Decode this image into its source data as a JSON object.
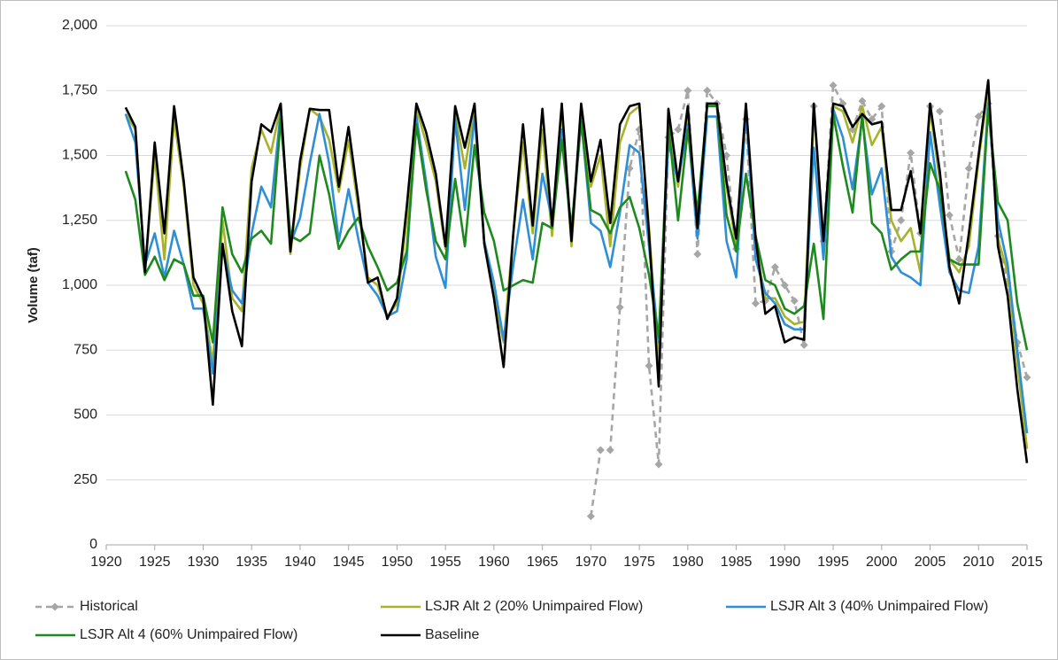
{
  "chart_data": {
    "type": "line",
    "y_label": "Volume (taf)",
    "x": [
      1922,
      1923,
      1924,
      1925,
      1926,
      1927,
      1928,
      1929,
      1930,
      1931,
      1932,
      1933,
      1934,
      1935,
      1936,
      1937,
      1938,
      1939,
      1940,
      1941,
      1942,
      1943,
      1944,
      1945,
      1946,
      1947,
      1948,
      1949,
      1950,
      1951,
      1952,
      1953,
      1954,
      1955,
      1956,
      1957,
      1958,
      1959,
      1960,
      1961,
      1962,
      1963,
      1964,
      1965,
      1966,
      1967,
      1968,
      1969,
      1970,
      1971,
      1972,
      1973,
      1974,
      1975,
      1976,
      1977,
      1978,
      1979,
      1980,
      1981,
      1982,
      1983,
      1984,
      1985,
      1986,
      1987,
      1988,
      1989,
      1990,
      1991,
      1992,
      1993,
      1994,
      1995,
      1996,
      1997,
      1998,
      1999,
      2000,
      2001,
      2002,
      2003,
      2004,
      2005,
      2006,
      2007,
      2008,
      2009,
      2010,
      2011,
      2012,
      2013,
      2014,
      2015
    ],
    "xlim": [
      1920,
      2015
    ],
    "xticks": [
      1920,
      1925,
      1930,
      1935,
      1940,
      1945,
      1950,
      1955,
      1960,
      1965,
      1970,
      1975,
      1980,
      1985,
      1990,
      1995,
      2000,
      2005,
      2010,
      2015
    ],
    "ylim": [
      0,
      2000
    ],
    "yticks": [
      0,
      250,
      500,
      750,
      {
        "value": 1000,
        "label": "1,000"
      },
      {
        "value": 1250,
        "label": "1,250"
      },
      {
        "value": 1500,
        "label": "1,500"
      },
      {
        "value": 1750,
        "label": "1,750"
      },
      {
        "value": 2000,
        "label": "2,000"
      }
    ],
    "grid": true,
    "legend": "bottom",
    "series": [
      {
        "name": "Historical",
        "color": "#a6a6a6",
        "dashed": true,
        "markers": true,
        "values": [
          null,
          null,
          null,
          null,
          null,
          null,
          null,
          null,
          null,
          null,
          null,
          null,
          null,
          null,
          null,
          null,
          null,
          null,
          null,
          null,
          null,
          null,
          null,
          null,
          null,
          null,
          null,
          null,
          null,
          null,
          null,
          null,
          null,
          null,
          null,
          null,
          null,
          null,
          null,
          null,
          null,
          null,
          null,
          null,
          null,
          null,
          null,
          null,
          110,
          365,
          365,
          915,
          1450,
          1600,
          690,
          310,
          1570,
          1600,
          1750,
          1120,
          1750,
          1700,
          1500,
          1140,
          1640,
          930,
          940,
          1070,
          1000,
          940,
          770,
          1690,
          1170,
          1770,
          1700,
          1600,
          1710,
          1640,
          1690,
          1130,
          1250,
          1510,
          1200,
          1690,
          1670,
          1270,
          1100,
          1450,
          1650,
          1700,
          1190,
          1010,
          780,
          645
        ]
      },
      {
        "name": "LSJR Alt 2 (20% Unimpaired Flow)",
        "color": "#a8b32c",
        "values": [
          1660,
          1600,
          1060,
          1500,
          1100,
          1640,
          1380,
          1000,
          930,
          700,
          1250,
          950,
          900,
          1450,
          1600,
          1510,
          1690,
          1120,
          1450,
          1680,
          1650,
          1560,
          1360,
          1560,
          1300,
          1030,
          1000,
          880,
          930,
          1250,
          1680,
          1550,
          1400,
          1140,
          1660,
          1450,
          1680,
          1170,
          960,
          780,
          1200,
          1550,
          1200,
          1600,
          1190,
          1680,
          1150,
          1680,
          1380,
          1500,
          1150,
          1550,
          1660,
          1690,
          1220,
          700,
          1650,
          1380,
          1660,
          1200,
          1690,
          1690,
          1380,
          1150,
          1690,
          1150,
          950,
          950,
          880,
          850,
          860,
          1680,
          1150,
          1690,
          1670,
          1550,
          1690,
          1540,
          1610,
          1250,
          1170,
          1220,
          1050,
          1680,
          1400,
          1100,
          1050,
          1150,
          1480,
          1760,
          1180,
          1050,
          700,
          370
        ]
      },
      {
        "name": "LSJR Alt 3 (40% Unimpaired Flow)",
        "color": "#2e8fd6",
        "values": [
          1660,
          1550,
          1080,
          1200,
          1030,
          1210,
          1080,
          910,
          910,
          660,
          1150,
          980,
          930,
          1200,
          1380,
          1300,
          1670,
          1160,
          1260,
          1470,
          1660,
          1470,
          1170,
          1370,
          1180,
          1010,
          960,
          880,
          900,
          1100,
          1650,
          1400,
          1110,
          990,
          1640,
          1290,
          1650,
          1170,
          1010,
          790,
          1080,
          1330,
          1100,
          1430,
          1250,
          1600,
          1190,
          1640,
          1240,
          1210,
          1070,
          1280,
          1540,
          1510,
          1150,
          780,
          1550,
          1400,
          1620,
          1180,
          1650,
          1650,
          1170,
          1030,
          1680,
          1100,
          970,
          930,
          850,
          830,
          830,
          1530,
          1100,
          1680,
          1570,
          1370,
          1640,
          1350,
          1450,
          1110,
          1050,
          1030,
          1000,
          1590,
          1310,
          1050,
          980,
          970,
          1150,
          1700,
          1250,
          1080,
          750,
          430
        ]
      },
      {
        "name": "LSJR Alt 4 (60% Unimpaired Flow)",
        "color": "#1e8a1e",
        "values": [
          1440,
          1330,
          1040,
          1110,
          1020,
          1100,
          1080,
          960,
          960,
          780,
          1300,
          1120,
          1050,
          1180,
          1210,
          1160,
          1640,
          1190,
          1170,
          1200,
          1500,
          1350,
          1140,
          1210,
          1260,
          1150,
          1070,
          980,
          1010,
          1130,
          1620,
          1370,
          1170,
          1100,
          1410,
          1150,
          1540,
          1280,
          1170,
          980,
          1000,
          1020,
          1010,
          1240,
          1220,
          1560,
          1220,
          1630,
          1290,
          1270,
          1200,
          1300,
          1340,
          1220,
          1040,
          800,
          1620,
          1250,
          1600,
          1280,
          1690,
          1690,
          1270,
          1130,
          1430,
          1190,
          1020,
          1000,
          910,
          890,
          920,
          1160,
          870,
          1660,
          1460,
          1280,
          1660,
          1240,
          1200,
          1060,
          1100,
          1130,
          1130,
          1470,
          1370,
          1100,
          1080,
          1080,
          1080,
          1680,
          1320,
          1250,
          930,
          750
        ]
      },
      {
        "name": "Baseline",
        "color": "#000000",
        "values": [
          1685,
          1610,
          1050,
          1550,
          1200,
          1690,
          1400,
          1030,
          950,
          540,
          1160,
          900,
          765,
          1400,
          1620,
          1590,
          1700,
          1130,
          1480,
          1680,
          1675,
          1675,
          1380,
          1610,
          1330,
          1010,
          1030,
          870,
          950,
          1300,
          1700,
          1590,
          1430,
          1150,
          1690,
          1530,
          1700,
          1160,
          950,
          685,
          1200,
          1620,
          1230,
          1680,
          1230,
          1700,
          1170,
          1700,
          1400,
          1560,
          1240,
          1620,
          1690,
          1700,
          1200,
          610,
          1680,
          1400,
          1690,
          1220,
          1700,
          1700,
          1400,
          1180,
          1700,
          1180,
          890,
          920,
          780,
          800,
          790,
          1700,
          1170,
          1700,
          1690,
          1610,
          1660,
          1620,
          1630,
          1290,
          1290,
          1440,
          1200,
          1700,
          1440,
          1070,
          930,
          1200,
          1500,
          1790,
          1150,
          960,
          600,
          315
        ]
      }
    ]
  }
}
